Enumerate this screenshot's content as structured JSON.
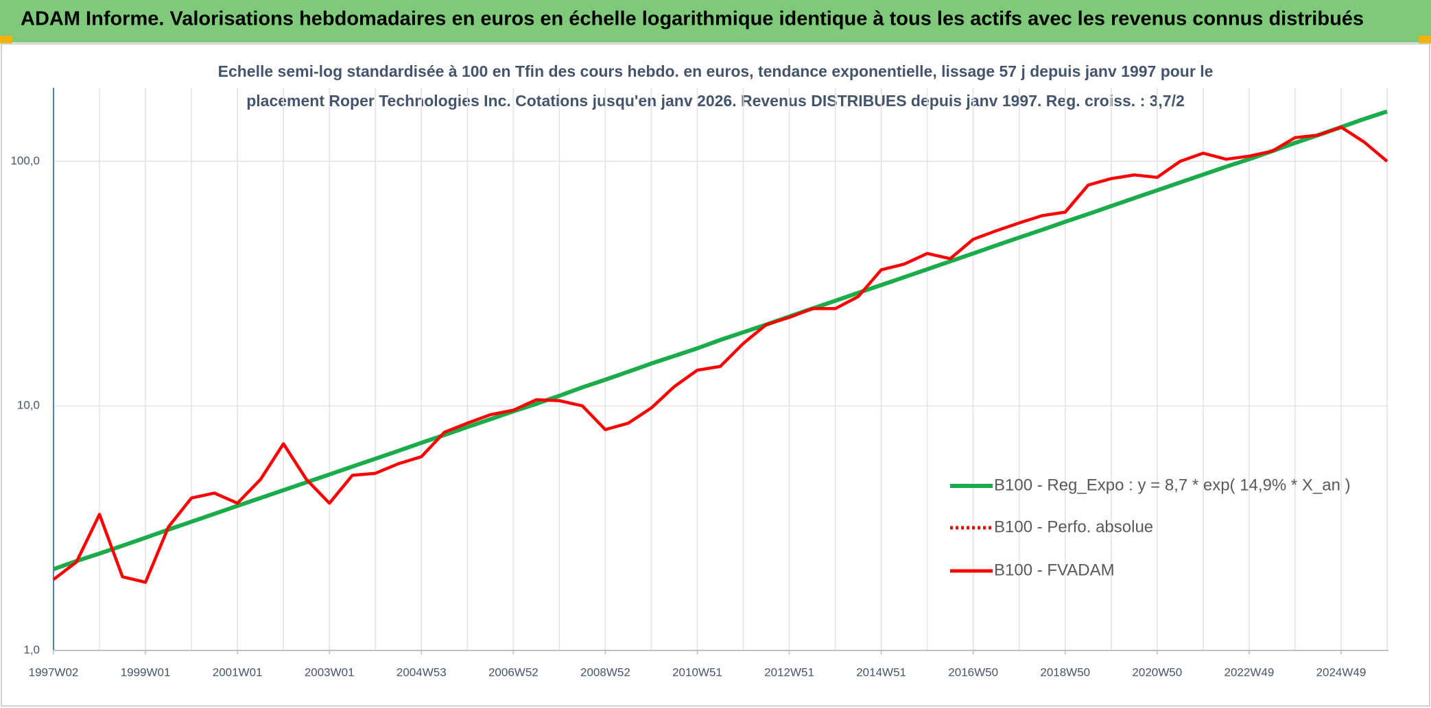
{
  "chart_data": {
    "type": "line",
    "title": "ADAM Informe. Valorisations hebdomadaires en euros en échelle logarithmique identique à tous les actifs avec les revenus connus distribués",
    "subtitle": [
      "Echelle semi-log standardisée à 100 en Tfin des cours hebdo. en euros, tendance exponentielle, lissage 57 j depuis janv 1997 pour le",
      "placement Roper Technologies Inc. Cotations jusqu'en janv 2026. Revenus DISTRIBUES depuis janv 1997. Reg. croiss. : 3,7/2"
    ],
    "categories": [
      "1997W02",
      null,
      null,
      null,
      "1999W01",
      null,
      null,
      null,
      "2001W01",
      null,
      null,
      null,
      "2003W01",
      null,
      null,
      null,
      "2004W53",
      null,
      null,
      null,
      "2006W52",
      null,
      null,
      null,
      "2008W52",
      null,
      null,
      null,
      "2010W51",
      null,
      null,
      null,
      "2012W51",
      null,
      null,
      null,
      "2014W51",
      null,
      null,
      null,
      "2016W50",
      null,
      null,
      null,
      "2018W50",
      null,
      null,
      null,
      "2020W50",
      null,
      null,
      null,
      "2022W49",
      null,
      null,
      null,
      "2024W49",
      null,
      null
    ],
    "log_scale": true,
    "ylim": [
      1,
      200
    ],
    "yticks": [
      {
        "value": 1,
        "label": "1,0"
      },
      {
        "value": 10,
        "label": "10,0"
      },
      {
        "value": 100,
        "label": "100,0"
      }
    ],
    "grid": true,
    "legend": "lower right",
    "series": [
      {
        "name": "B100 - Reg_Expo : y = 8,7 * exp( 14,9% *  X_an )",
        "color": "#1aab4a",
        "style": "solid",
        "values": [
          2.15,
          2.32,
          2.49,
          2.68,
          2.89,
          3.12,
          3.36,
          3.62,
          3.9,
          4.2,
          4.52,
          4.87,
          5.24,
          5.65,
          6.08,
          6.55,
          7.06,
          7.6,
          8.19,
          8.82,
          9.5,
          10.2,
          11.0,
          11.9,
          12.8,
          13.8,
          14.9,
          16.0,
          17.2,
          18.6,
          20.0,
          21.5,
          23.2,
          25.0,
          26.9,
          29.0,
          31.2,
          33.6,
          36.2,
          39.0,
          42.0,
          45.3,
          48.8,
          52.5,
          56.6,
          60.9,
          65.6,
          70.7,
          76.1,
          82.0,
          88.3,
          95.1,
          102,
          110,
          119,
          128,
          138,
          149,
          160
        ]
      },
      {
        "name": "B100 - Perfo. absolue",
        "color": "#ff0000",
        "style": "dotted",
        "values": [
          1.95,
          2.3,
          3.6,
          2.0,
          1.9,
          3.2,
          4.2,
          4.4,
          4.0,
          5.0,
          7.0,
          5.0,
          4.0,
          5.2,
          5.3,
          5.8,
          6.2,
          7.8,
          8.5,
          9.2,
          9.6,
          10.6,
          10.5,
          10.0,
          8.0,
          8.5,
          9.8,
          12.0,
          14.0,
          14.5,
          18.0,
          21.5,
          23.0,
          25.0,
          25.0,
          28.0,
          36,
          38,
          42,
          40,
          48,
          52,
          56,
          60,
          62,
          80,
          85,
          88,
          86,
          100,
          108,
          102,
          105,
          110,
          125,
          128,
          138,
          120,
          100
        ]
      },
      {
        "name": "B100 - FVADAM",
        "color": "#ff0000",
        "style": "solid",
        "values": [
          1.95,
          2.3,
          3.6,
          2.0,
          1.9,
          3.2,
          4.2,
          4.4,
          4.0,
          5.0,
          7.0,
          5.0,
          4.0,
          5.2,
          5.3,
          5.8,
          6.2,
          7.8,
          8.5,
          9.2,
          9.6,
          10.6,
          10.5,
          10.0,
          8.0,
          8.5,
          9.8,
          12.0,
          14.0,
          14.5,
          18.0,
          21.5,
          23.0,
          25.0,
          25.0,
          28.0,
          36,
          38,
          42,
          40,
          48,
          52,
          56,
          60,
          62,
          80,
          85,
          88,
          86,
          100,
          108,
          102,
          105,
          110,
          125,
          128,
          138,
          120,
          100
        ]
      }
    ]
  }
}
